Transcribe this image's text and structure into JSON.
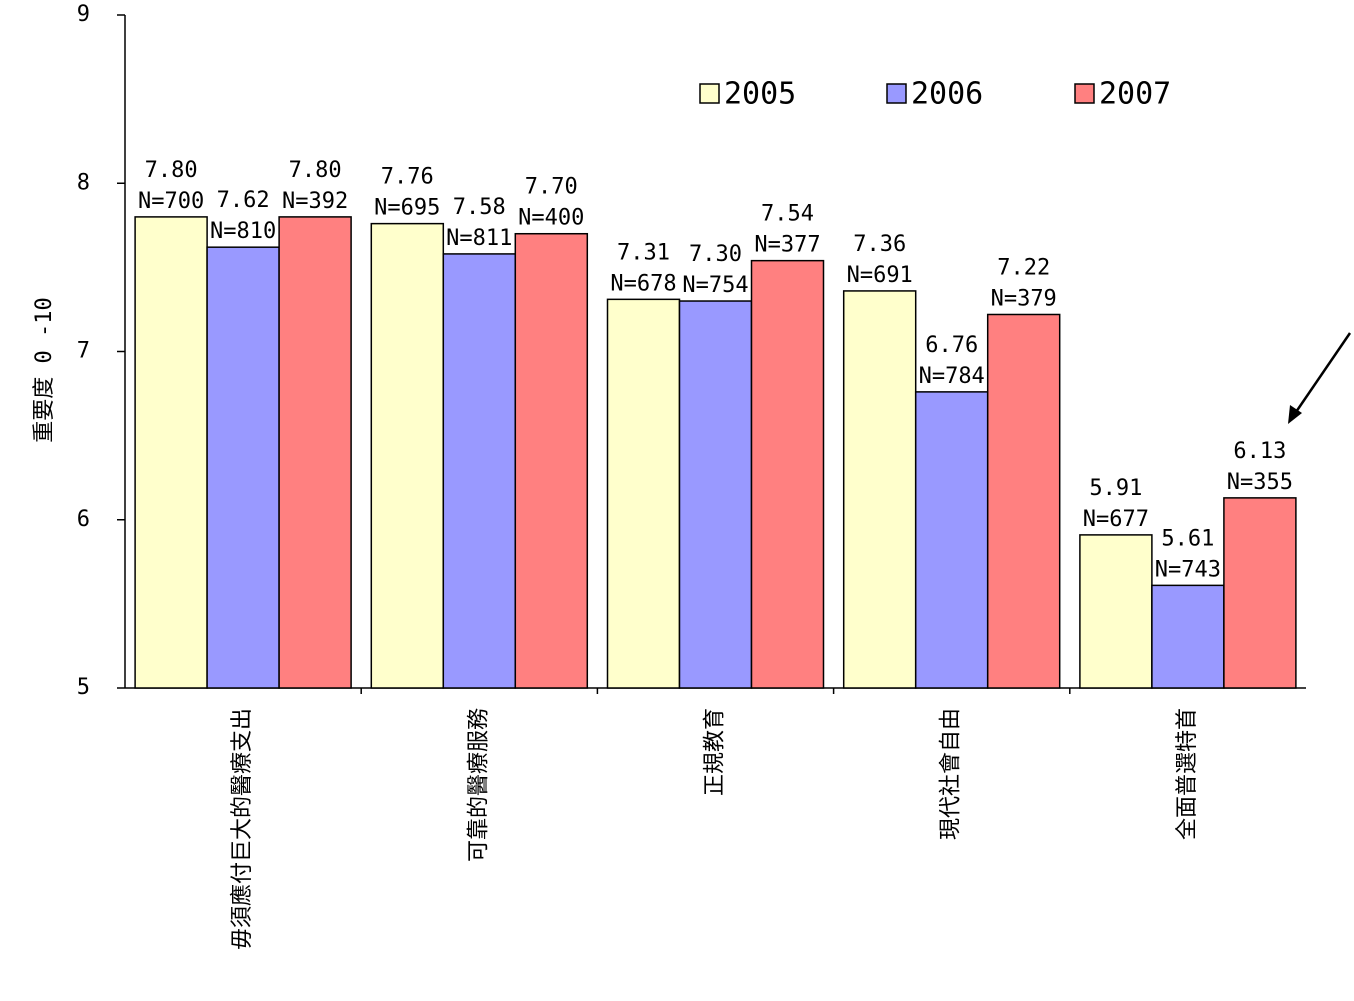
{
  "chart_data": {
    "type": "bar",
    "ylabel": "重要度 0 -10",
    "ylim": [
      5,
      9
    ],
    "yticks": [
      "5",
      "6",
      "7",
      "8",
      "9"
    ],
    "grid": false,
    "legend_position": "top-right",
    "categories": [
      "毋須應付巨大的醫療支出",
      "可靠的醫療服務",
      "正規教育",
      "現代社會自由",
      "全面普選特首"
    ],
    "series": [
      {
        "name": "2005",
        "color": "#FFFFCC",
        "values": [
          7.8,
          7.76,
          7.31,
          7.36,
          5.91
        ],
        "labels": [
          "7.80",
          "7.76",
          "7.31",
          "7.36",
          "5.91"
        ],
        "n": [
          "N=700",
          "N=695",
          "N=678",
          "N=691",
          "N=677"
        ]
      },
      {
        "name": "2006",
        "color": "#9999FF",
        "values": [
          7.62,
          7.58,
          7.3,
          6.76,
          5.61
        ],
        "labels": [
          "7.62",
          "7.58",
          "7.30",
          "6.76",
          "5.61"
        ],
        "n": [
          "N=810",
          "N=811",
          "N=754",
          "N=784",
          "N=743"
        ]
      },
      {
        "name": "2007",
        "color": "#FF8080",
        "values": [
          7.8,
          7.7,
          7.54,
          7.22,
          6.13
        ],
        "labels": [
          "7.80",
          "7.70",
          "7.54",
          "7.22",
          "6.13"
        ],
        "n": [
          "N=392",
          "N=400",
          "N=377",
          "N=379",
          "N=355"
        ]
      }
    ],
    "annotations": [
      {
        "type": "arrow",
        "target": "全面普選特首 2007"
      }
    ]
  }
}
